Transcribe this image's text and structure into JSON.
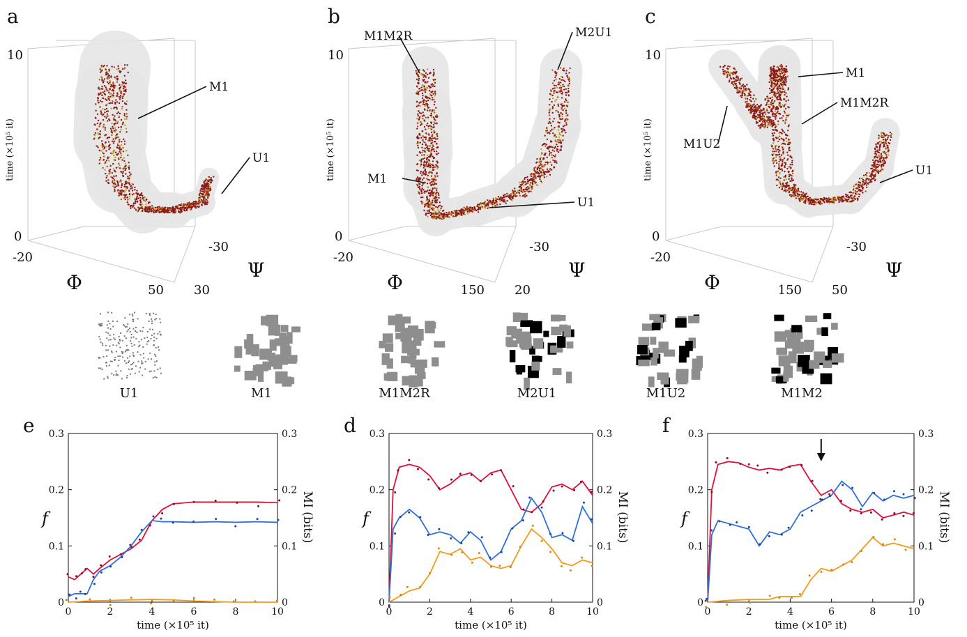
{
  "panels_3d": [
    {
      "letter": "a",
      "ylabel": "time (×10⁵ it)",
      "ytick_top": "10",
      "ytick_bottom": "0",
      "phi_label": "Φ",
      "psi_label": "Ψ",
      "phi_ticks": [
        "-20",
        "50"
      ],
      "psi_ticks": [
        "30",
        "-30"
      ],
      "annotations": [
        "M1",
        "U1"
      ]
    },
    {
      "letter": "b",
      "ylabel": "time (×10⁵ it)",
      "ytick_top": "10",
      "ytick_bottom": "0",
      "phi_label": "Φ",
      "psi_label": "Ψ",
      "phi_ticks": [
        "-20",
        "150"
      ],
      "psi_ticks": [
        "20",
        "-30"
      ],
      "annotations": [
        "M1M2R",
        "M2U1",
        "M1",
        "U1"
      ]
    },
    {
      "letter": "c",
      "ylabel": "time (×10⁵ it)",
      "ytick_top": "10",
      "ytick_bottom": "0",
      "phi_label": "Φ",
      "psi_label": "Ψ",
      "phi_ticks": [
        "-20",
        "150"
      ],
      "psi_ticks": [
        "50",
        "-30"
      ],
      "annotations": [
        "M1",
        "M1M2R",
        "M1U2",
        "U1"
      ]
    }
  ],
  "thumbnails": [
    "U1",
    "M1",
    "M1M2R",
    "M2U1",
    "M1U2",
    "M1M2"
  ],
  "colors": {
    "f_red": "#e0103a",
    "mi_blue": "#2f6fd8",
    "orange": "#f39a1e",
    "dot_red": "#7a1020",
    "dot_blue": "#1f3f9a",
    "dot_orange": "#c98a18",
    "gray": "#8e8e8e"
  },
  "line_charts": [
    {
      "letter": "e",
      "xlabel": "time (×10⁵ it)",
      "ylabel_left": "f",
      "ylabel_right": "MI (bits)",
      "xticks": [
        "0",
        "2",
        "4",
        "6",
        "8",
        "10"
      ],
      "yticks": [
        "0",
        "0.1",
        "0.2",
        "0.3"
      ]
    },
    {
      "letter": "d",
      "xlabel": "time (×10⁵ it)",
      "ylabel_left": "f",
      "ylabel_right": "MI (bits)",
      "xticks": [
        "0",
        "2",
        "4",
        "6",
        "8",
        "10"
      ],
      "yticks": [
        "0",
        "0.1",
        "0.2",
        "0.3"
      ]
    },
    {
      "letter": "f",
      "xlabel": "time (×10⁵ it)",
      "ylabel_left": "f",
      "ylabel_right": "MI (bits)",
      "xticks": [
        "0",
        "2",
        "4",
        "6",
        "8",
        "10"
      ],
      "yticks": [
        "0",
        "0.1",
        "0.2",
        "0.3"
      ]
    }
  ],
  "chart_data": [
    {
      "type": "line",
      "panel": "e",
      "xlim": [
        0,
        10
      ],
      "ylim": [
        0,
        0.3
      ],
      "grid": false,
      "series": [
        {
          "color": "red",
          "x": [
            0,
            0.3,
            0.6,
            0.9,
            1.2,
            1.5,
            2,
            2.5,
            3,
            3.5,
            4,
            4.5,
            5,
            6,
            7,
            8,
            9,
            10
          ],
          "values": [
            0.045,
            0.04,
            0.05,
            0.06,
            0.05,
            0.06,
            0.075,
            0.085,
            0.095,
            0.11,
            0.145,
            0.165,
            0.175,
            0.178,
            0.178,
            0.178,
            0.178,
            0.177
          ]
        },
        {
          "color": "blue",
          "x": [
            0,
            0.3,
            0.6,
            0.9,
            1.2,
            1.5,
            2,
            2.5,
            3,
            3.5,
            4,
            4.5,
            5,
            6,
            7,
            8,
            9,
            10
          ],
          "values": [
            0.01,
            0.015,
            0.015,
            0.015,
            0.04,
            0.055,
            0.065,
            0.08,
            0.1,
            0.125,
            0.145,
            0.143,
            0.143,
            0.142,
            0.143,
            0.142,
            0.143,
            0.142
          ]
        },
        {
          "color": "orange",
          "x": [
            0,
            1,
            2,
            3,
            4,
            5,
            6,
            7,
            8,
            9,
            10
          ],
          "values": [
            0,
            0.002,
            0.003,
            0.004,
            0.005,
            0.004,
            0.002,
            0.001,
            0,
            0,
            0
          ]
        }
      ]
    },
    {
      "type": "line",
      "panel": "d",
      "xlim": [
        0,
        10
      ],
      "ylim": [
        0,
        0.3
      ],
      "grid": false,
      "series": [
        {
          "color": "red",
          "x": [
            0,
            0.2,
            0.5,
            1,
            1.5,
            2,
            2.5,
            3,
            3.5,
            4,
            4.5,
            5,
            5.5,
            6,
            6.5,
            7,
            7.5,
            8,
            8.5,
            9,
            9.5,
            10
          ],
          "values": [
            0,
            0.2,
            0.24,
            0.245,
            0.24,
            0.225,
            0.2,
            0.21,
            0.225,
            0.23,
            0.215,
            0.23,
            0.235,
            0.2,
            0.165,
            0.16,
            0.175,
            0.205,
            0.21,
            0.2,
            0.215,
            0.19
          ]
        },
        {
          "color": "blue",
          "x": [
            0,
            0.2,
            0.5,
            1,
            1.5,
            2,
            2.5,
            3,
            3.5,
            4,
            4.5,
            5,
            5.5,
            6,
            6.5,
            7,
            7.5,
            8,
            8.5,
            9,
            9.5,
            10
          ],
          "values": [
            0,
            0.13,
            0.15,
            0.165,
            0.15,
            0.12,
            0.125,
            0.12,
            0.105,
            0.125,
            0.11,
            0.075,
            0.09,
            0.13,
            0.145,
            0.185,
            0.16,
            0.115,
            0.12,
            0.11,
            0.17,
            0.14
          ]
        },
        {
          "color": "orange",
          "x": [
            0,
            0.5,
            1,
            1.5,
            2,
            2.5,
            3,
            3.5,
            4,
            4.5,
            5,
            5.5,
            6,
            6.5,
            7,
            7.5,
            8,
            8.5,
            9,
            9.5,
            10
          ],
          "values": [
            0,
            0.01,
            0.02,
            0.025,
            0.05,
            0.09,
            0.085,
            0.095,
            0.075,
            0.08,
            0.065,
            0.06,
            0.065,
            0.1,
            0.13,
            0.115,
            0.095,
            0.07,
            0.065,
            0.075,
            0.07
          ]
        }
      ]
    },
    {
      "type": "line",
      "panel": "f",
      "xlim": [
        0,
        10
      ],
      "ylim": [
        0,
        0.3
      ],
      "grid": false,
      "annotation": "arrow at x≈5.5",
      "series": [
        {
          "color": "red",
          "x": [
            0,
            0.2,
            0.5,
            1,
            1.5,
            2,
            2.5,
            3,
            3.5,
            4,
            4.5,
            5,
            5.5,
            6,
            6.5,
            7,
            7.5,
            8,
            8.5,
            9,
            9.5,
            10
          ],
          "values": [
            0,
            0.2,
            0.245,
            0.25,
            0.248,
            0.24,
            0.235,
            0.238,
            0.235,
            0.242,
            0.245,
            0.215,
            0.19,
            0.2,
            0.175,
            0.165,
            0.16,
            0.165,
            0.15,
            0.155,
            0.16,
            0.155
          ]
        },
        {
          "color": "blue",
          "x": [
            0,
            0.2,
            0.5,
            1,
            1.5,
            2,
            2.5,
            3,
            3.5,
            4,
            4.5,
            5,
            5.5,
            6,
            6.5,
            7,
            7.5,
            8,
            8.5,
            9,
            9.5,
            10
          ],
          "values": [
            0,
            0.12,
            0.145,
            0.14,
            0.135,
            0.13,
            0.1,
            0.125,
            0.12,
            0.13,
            0.16,
            0.17,
            0.18,
            0.19,
            0.215,
            0.2,
            0.17,
            0.195,
            0.18,
            0.19,
            0.185,
            0.19
          ]
        },
        {
          "color": "orange",
          "x": [
            0,
            1,
            2,
            3,
            3.5,
            4,
            4.5,
            5,
            5.5,
            6,
            6.5,
            7,
            7.5,
            8,
            8.5,
            9,
            9.5,
            10
          ],
          "values": [
            0,
            0.003,
            0.005,
            0.005,
            0.01,
            0.01,
            0.01,
            0.04,
            0.06,
            0.055,
            0.065,
            0.075,
            0.095,
            0.115,
            0.1,
            0.105,
            0.1,
            0.095
          ]
        }
      ]
    }
  ]
}
